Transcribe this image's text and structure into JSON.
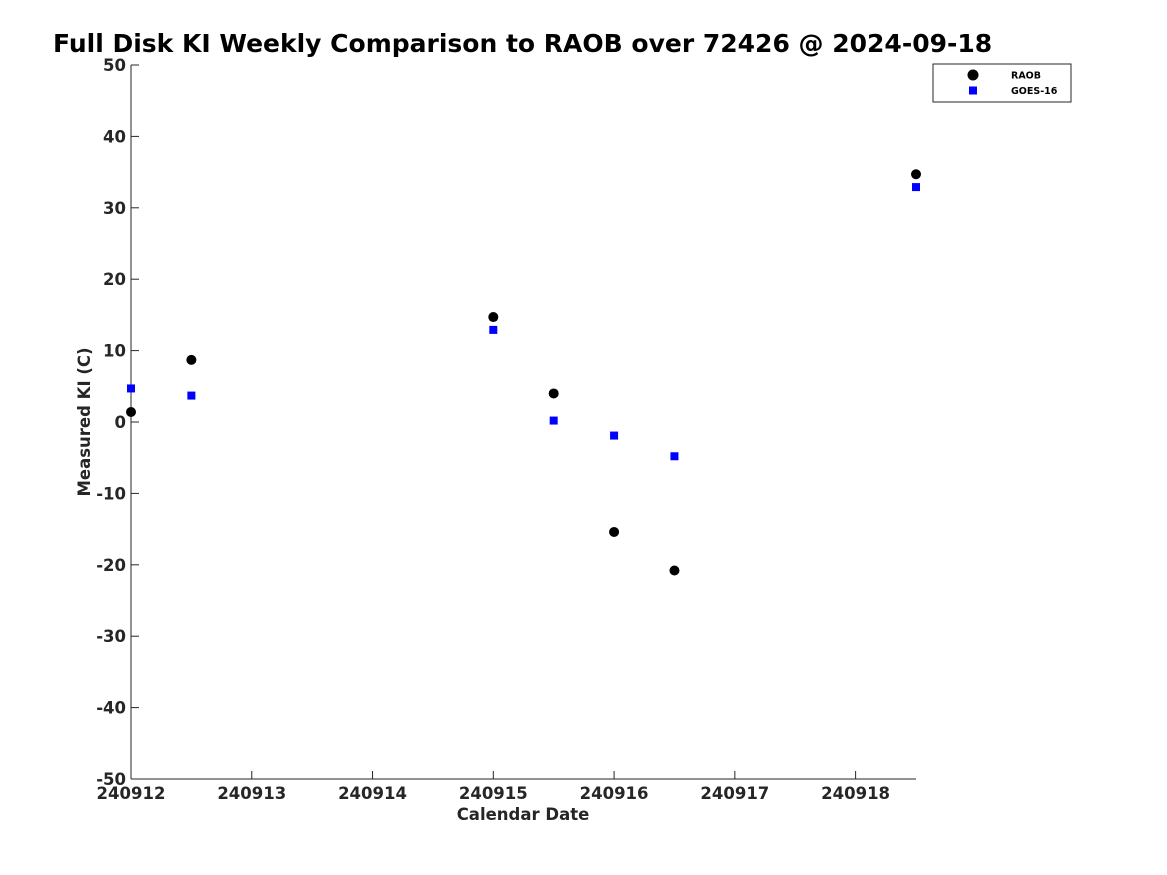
{
  "chart_data": {
    "type": "scatter",
    "title": "Full Disk KI Weekly Comparison to RAOB over 72426 @ 2024-09-18",
    "xlabel": "Calendar Date",
    "ylabel": "Measured KI (C)",
    "xlim": [
      240912,
      240918.5
    ],
    "ylim": [
      -50,
      50
    ],
    "x_ticks": [
      240912,
      240913,
      240914,
      240915,
      240916,
      240917,
      240918
    ],
    "x_tick_labels": [
      "240912",
      "240913",
      "240914",
      "240915",
      "240916",
      "240917",
      "240918"
    ],
    "y_ticks": [
      50,
      40,
      30,
      20,
      10,
      0,
      -10,
      -20,
      -30,
      -40,
      -50
    ],
    "y_tick_labels": [
      "50",
      "40",
      "30",
      "20",
      "10",
      "0",
      "-10",
      "-20",
      "-30",
      "-40",
      "-50"
    ],
    "grid": false,
    "legend_position": "top-right",
    "series": [
      {
        "name": "RAOB",
        "marker": "circle",
        "color": "#000000",
        "x": [
          240912,
          240912.5,
          240915,
          240915.5,
          240916,
          240916.5,
          240918.5
        ],
        "y": [
          1.4,
          8.7,
          14.7,
          4.0,
          -15.4,
          -20.8,
          34.7
        ]
      },
      {
        "name": "GOES-16",
        "marker": "square",
        "color": "#0000ff",
        "x": [
          240912,
          240912.5,
          240915,
          240915.5,
          240916,
          240916.5,
          240918.5
        ],
        "y": [
          4.7,
          3.7,
          12.9,
          0.2,
          -1.9,
          -4.8,
          32.9
        ]
      }
    ]
  }
}
